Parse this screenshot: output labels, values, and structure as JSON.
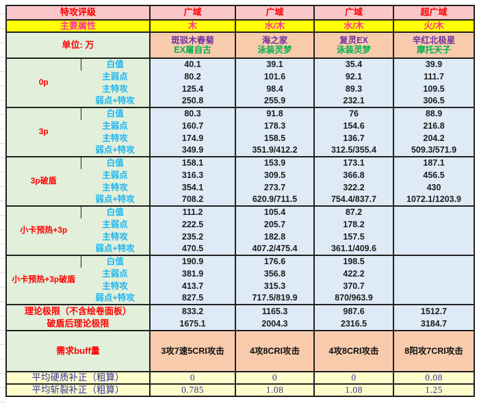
{
  "table": {
    "header": {
      "rating_label": "特攻评级",
      "ratings": [
        "广域",
        "广域",
        "广域",
        "超广域"
      ],
      "attribute_label": "主要属性",
      "attributes": [
        "木",
        "水/木",
        "水/木",
        "火/木"
      ],
      "unit_label": "单位: 万",
      "characters": [
        {
          "line1": "斑驳木春菊",
          "line2": "EX屠自古"
        },
        {
          "line1": "海之家",
          "line2": "泳装灵梦"
        },
        {
          "line1": "复灵EX",
          "line2": "泳装灵梦"
        },
        {
          "line1": "辛红北极星",
          "line2": "摩托天子"
        }
      ]
    },
    "stat_labels": [
      "白值",
      "主弱点",
      "主特攻",
      "弱点+特攻"
    ],
    "sections": [
      {
        "label": "0p",
        "rows": [
          [
            "40.1",
            "39.1",
            "35.4",
            "39.9"
          ],
          [
            "80.2",
            "101.6",
            "92.1",
            "111.7"
          ],
          [
            "125.4",
            "98.4",
            "89.3",
            "109.5"
          ],
          [
            "250.8",
            "255.9",
            "232.1",
            "306.5"
          ]
        ]
      },
      {
        "label": "3p",
        "rows": [
          [
            "80.3",
            "91.8",
            "76",
            "88.9"
          ],
          [
            "160.7",
            "178.3",
            "154.6",
            "216.8"
          ],
          [
            "174.9",
            "158.5",
            "136.7",
            "204.2"
          ],
          [
            "349.9",
            "351.9/412.2",
            "312.5/355.4",
            "509.3/571.9"
          ]
        ]
      },
      {
        "label": "3p破盾",
        "rows": [
          [
            "158.1",
            "153.9",
            "173.1",
            "187.1"
          ],
          [
            "316.3",
            "309.5",
            "366.8",
            "456.5"
          ],
          [
            "354.1",
            "273.7",
            "322.2",
            "430"
          ],
          [
            "708.2",
            "620.9/711.5",
            "754.4/837.7",
            "1072.1/1203.9"
          ]
        ]
      },
      {
        "label": "小卡预热+3p",
        "rows": [
          [
            "111.2",
            "105.4",
            "87.2",
            ""
          ],
          [
            "222.5",
            "205.7",
            "178.2",
            ""
          ],
          [
            "235.2",
            "182.8",
            "157.5",
            ""
          ],
          [
            "470.5",
            "407.2/475.4",
            "361.1/409.6",
            ""
          ]
        ]
      },
      {
        "label": "小卡预热+3p破盾",
        "rows": [
          [
            "190.9",
            "176.6",
            "198.5",
            ""
          ],
          [
            "381.9",
            "356.8",
            "422.2",
            ""
          ],
          [
            "413.7",
            "315.3",
            "370.7",
            ""
          ],
          [
            "827.5",
            "717.5/819.9",
            "870/963.9",
            ""
          ]
        ]
      }
    ],
    "limit_rows": [
      {
        "label": "理论极限（不含绘卷面板）",
        "values": [
          "833.2",
          "1165.3",
          "987.6",
          "1512.7"
        ]
      },
      {
        "label": "破盾后理论极限",
        "values": [
          "1675.1",
          "2004.3",
          "2316.5",
          "3184.7"
        ]
      }
    ],
    "buff_row": {
      "label": "需求buff量",
      "values": [
        "3攻7速5CRI攻击",
        "4攻8CRI攻击",
        "4攻8CRI攻击",
        "8阳攻7CRI攻击"
      ]
    },
    "correction_rows": [
      {
        "label": "平均硬质补正（粗算）",
        "values": [
          "0",
          "0",
          "0",
          "0.08"
        ]
      },
      {
        "label": "平均斩裂补正（粗算）",
        "values": [
          "0.785",
          "1.08",
          "1.08",
          "1.25"
        ]
      }
    ]
  },
  "colors": {
    "header_pink_bg": "#F9C7C9",
    "header_red_text": "#FE0000",
    "attribute_yellow_bg": "#FFFF00",
    "attribute_magenta_text": "#FF3399",
    "label_green_bg": "#E2EFDA",
    "stat_label_cyan_text": "#1FB4EE",
    "data_blue_bg": "#DEEAF6",
    "character_orange_bg": "#F8CBAD",
    "character_purple_text": "#7030A0",
    "character_green_text": "#00B050",
    "correction_yellow_bg": "#FFFFCC",
    "correction_navy_text": "#333399",
    "border_black": "#1f1f1f"
  }
}
